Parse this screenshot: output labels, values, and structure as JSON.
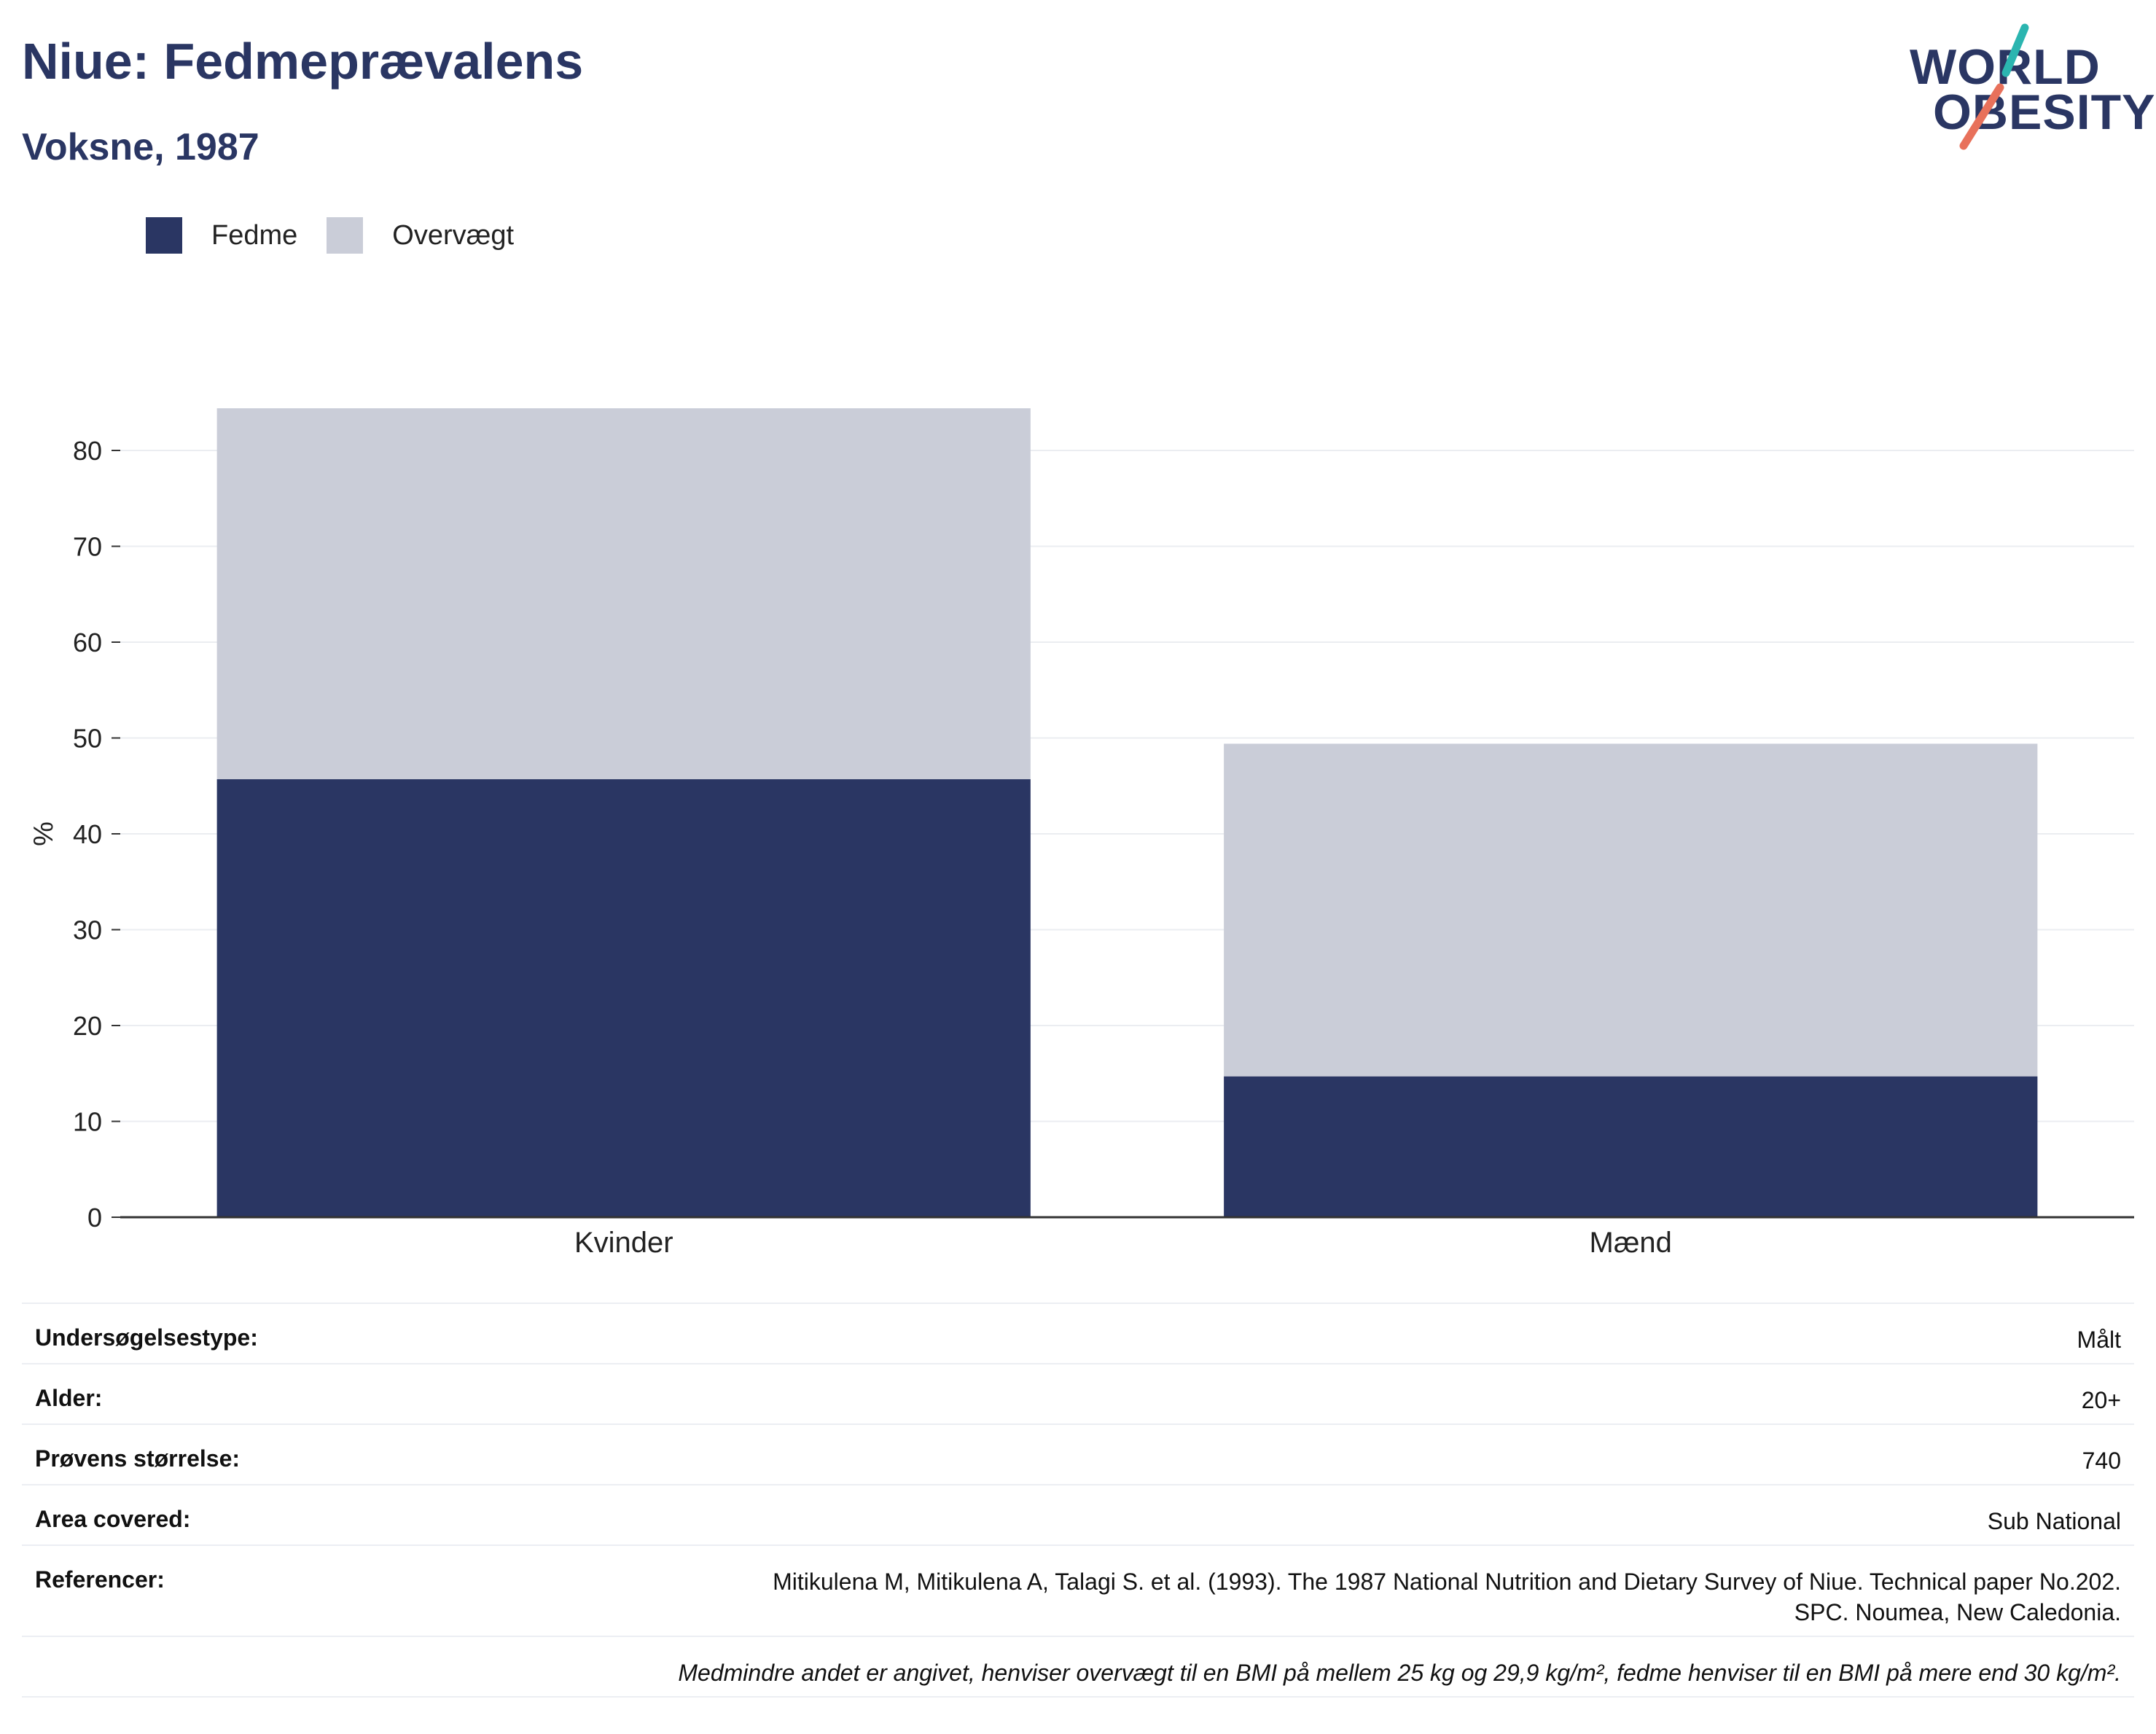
{
  "header": {
    "title": "Niue: Fedmeprævalens",
    "subtitle": "Voksne, 1987",
    "logo_line1": "WORLD",
    "logo_line2": "OBESITY"
  },
  "colors": {
    "obesity": "#2a3663",
    "overweight": "#cacdd8",
    "logo_teal": "#2bb5b0",
    "logo_coral": "#e8715b"
  },
  "legend": [
    {
      "label": "Fedme",
      "color": "#2a3663"
    },
    {
      "label": "Overvægt",
      "color": "#cacdd8"
    }
  ],
  "chart_data": {
    "type": "bar",
    "stacked": true,
    "categories": [
      "Kvinder",
      "Mænd"
    ],
    "series": [
      {
        "name": "Fedme",
        "values": [
          45.7,
          14.7
        ]
      },
      {
        "name": "Overvægt",
        "values": [
          38.7,
          34.7
        ]
      }
    ],
    "ylabel": "%",
    "ylim": [
      0,
      85
    ],
    "yticks": [
      0,
      10,
      20,
      30,
      40,
      50,
      60,
      70,
      80
    ],
    "grid": true,
    "legend_position": "top-left"
  },
  "info": {
    "rows": [
      {
        "label": "Undersøgelsestype:",
        "value": "Målt"
      },
      {
        "label": "Alder:",
        "value": "20+"
      },
      {
        "label": "Prøvens størrelse:",
        "value": "740"
      },
      {
        "label": "Area covered:",
        "value": "Sub National"
      }
    ],
    "reference_label": "Referencer:",
    "reference_line1": "Mitikulena M, Mitikulena A, Talagi S. et al. (1993). The 1987 National Nutrition and Dietary Survey of Niue. Technical paper No.202.",
    "reference_line2": "SPC. Noumea, New Caledonia.",
    "note": "Medmindre andet er angivet, henviser overvægt til en BMI på mellem 25 kg og 29,9 kg/m², fedme henviser til en BMI på mere end 30 kg/m²."
  }
}
